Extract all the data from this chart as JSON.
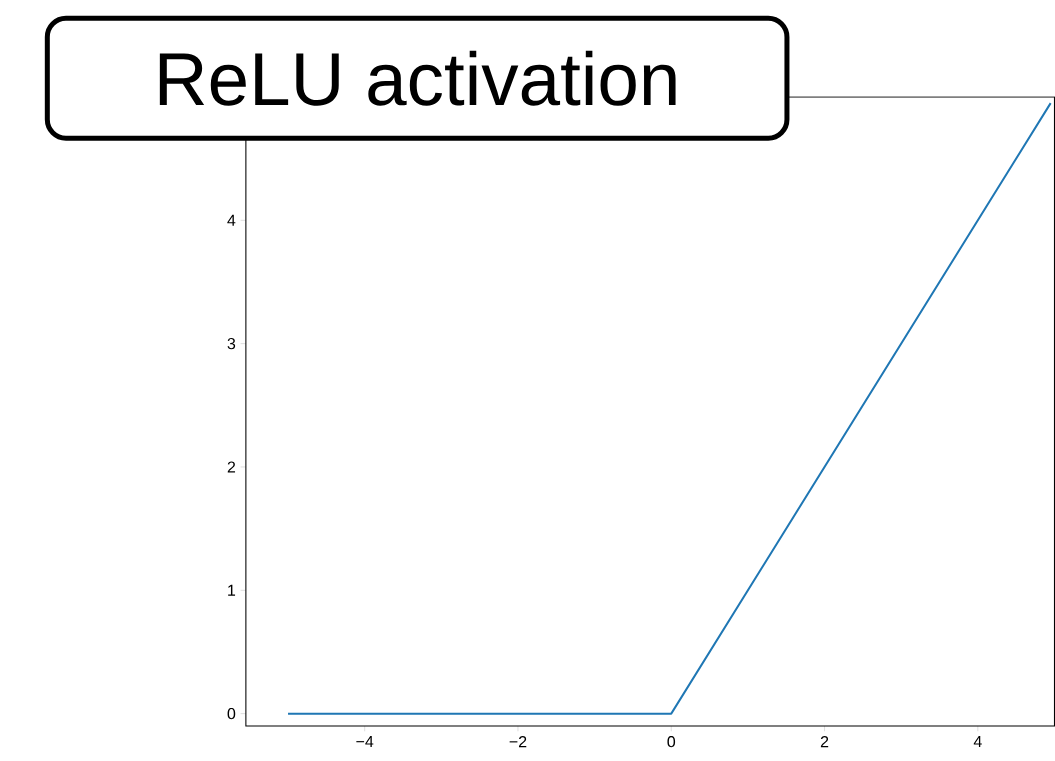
{
  "chart_data": {
    "type": "line",
    "title": "ReLU activation",
    "x": [
      -5,
      0,
      4.95
    ],
    "series": [
      {
        "color": "#1f77b4",
        "values": [
          0,
          0,
          4.95
        ]
      }
    ],
    "xlim": [
      -5.55,
      5.0
    ],
    "ylim": [
      -0.1,
      5.0
    ],
    "xticks": [
      {
        "value": -4,
        "label": "−4"
      },
      {
        "value": -2,
        "label": "−2"
      },
      0,
      2,
      4
    ],
    "yticks": [
      0,
      1,
      2,
      3,
      4
    ],
    "grid": false,
    "marker": "none",
    "line_style": "solid"
  }
}
